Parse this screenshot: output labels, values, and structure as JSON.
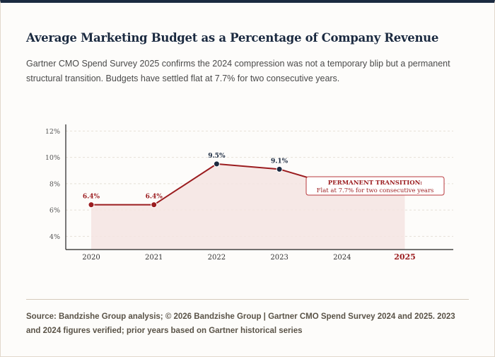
{
  "header": {
    "title": "Average Marketing Budget as a Percentage of Company Revenue",
    "subtitle": "Gartner CMO Spend Survey 2025 confirms the 2024 compression was not a temporary blip but a permanent structural transition. Budgets have settled flat at 7.7% for two consecutive years."
  },
  "footer": {
    "source": "Source: Bandzishe Group analysis; © 2026 Bandzishe Group  |  Gartner CMO Spend Survey 2024 and 2025. 2023 and 2024 figures verified; prior years based on Gartner historical series"
  },
  "colors": {
    "accent": "#9b1c1f",
    "navy": "#1b2a40",
    "area_fill": "#f4e4e2"
  },
  "chart_data": {
    "type": "line",
    "categories": [
      "2020",
      "2021",
      "2022",
      "2023",
      "2024",
      "2025"
    ],
    "highlight_category": "2025",
    "values": [
      6.4,
      6.4,
      9.5,
      9.1,
      7.7,
      7.7
    ],
    "point_labels": [
      "6.4%",
      "6.4%",
      "9.5%",
      "9.1%",
      "",
      ""
    ],
    "label_colors": [
      "#9b1c1f",
      "#9b1c1f",
      "#1b2a40",
      "#1b2a40",
      "",
      ""
    ],
    "y_ticks": [
      4,
      6,
      8,
      10,
      12
    ],
    "y_tick_labels": [
      "4%",
      "6%",
      "8%",
      "10%",
      "12%"
    ],
    "ylim": [
      3,
      12.5
    ],
    "grid": true,
    "annotation": {
      "title": "PERMANENT TRANSITION:",
      "text": "Flat at 7.7% for two consecutive years"
    }
  }
}
